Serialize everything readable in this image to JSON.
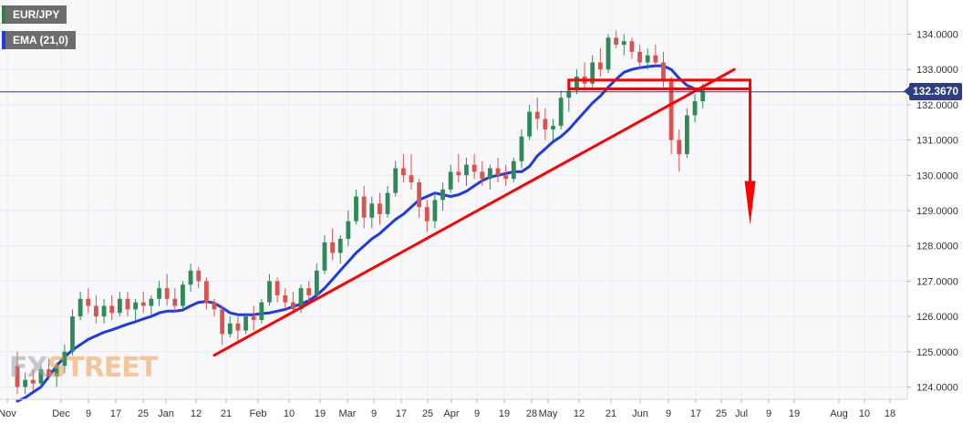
{
  "legend": {
    "symbol": "EUR/JPY",
    "indicator": "EMA (21,0)",
    "symbol_color": "#2e7d4f",
    "indicator_color": "#1f3be0"
  },
  "current_price": "132.3670",
  "watermark": {
    "part1": "FX",
    "part2": "STREET"
  },
  "chart_data": {
    "type": "candlestick",
    "symbol": "EUR/JPY",
    "y_axis": {
      "range": [
        123.75,
        134.4
      ],
      "ticks": [
        "124.0000",
        "125.0000",
        "126.0000",
        "127.0000",
        "128.0000",
        "129.0000",
        "130.0000",
        "131.0000",
        "132.0000",
        "133.0000",
        "134.0000"
      ]
    },
    "x_axis": {
      "ticks": [
        "Nov",
        "Dec",
        "9",
        "17",
        "25",
        "Jan",
        "12",
        "21",
        "Feb",
        "10",
        "19",
        "Mar",
        "9",
        "17",
        "25",
        "Apr",
        "9",
        "19",
        "28",
        "May",
        "12",
        "21",
        "Jun",
        "9",
        "17",
        "25",
        "Jul",
        "9",
        "19",
        "Aug",
        "10",
        "18"
      ]
    },
    "colors": {
      "up": "#2e8b57",
      "down": "#d9534f",
      "ema": "#1f3be0",
      "annotation": "#ff0000",
      "price_line": "#2d3f80"
    },
    "current_price_line": 132.367,
    "ema_21": [
      123.6,
      123.7,
      123.85,
      124.0,
      124.3,
      124.6,
      124.85,
      125.05,
      125.2,
      125.35,
      125.45,
      125.55,
      125.62,
      125.7,
      125.78,
      125.85,
      125.93,
      126.0,
      126.1,
      126.15,
      126.15,
      126.18,
      126.3,
      126.4,
      126.42,
      126.38,
      126.25,
      126.1,
      126.05,
      126.05,
      126.05,
      126.08,
      126.1,
      126.15,
      126.2,
      126.28,
      126.35,
      126.45,
      126.6,
      126.8,
      127.05,
      127.3,
      127.55,
      127.8,
      128.0,
      128.2,
      128.35,
      128.55,
      128.75,
      128.9,
      129.1,
      129.3,
      129.4,
      129.5,
      129.45,
      129.4,
      129.45,
      129.55,
      129.7,
      129.85,
      129.95,
      130.0,
      130.05,
      130.1,
      130.1,
      130.25,
      130.55,
      130.75,
      130.95,
      131.1,
      131.3,
      131.55,
      131.8,
      132.05,
      132.25,
      132.5,
      132.72,
      132.92,
      133.0,
      133.05,
      133.08,
      133.1,
      133.1,
      133.0,
      132.75,
      132.55,
      132.45,
      132.4
    ],
    "candles": [
      {
        "o": 124.6,
        "h": 125.0,
        "l": 123.8,
        "c": 124.0
      },
      {
        "o": 124.0,
        "h": 124.4,
        "l": 123.8,
        "c": 124.2
      },
      {
        "o": 124.2,
        "h": 124.5,
        "l": 123.9,
        "c": 124.1
      },
      {
        "o": 124.1,
        "h": 124.6,
        "l": 124.0,
        "c": 124.5
      },
      {
        "o": 124.5,
        "h": 124.8,
        "l": 124.2,
        "c": 124.3
      },
      {
        "o": 124.3,
        "h": 124.7,
        "l": 124.0,
        "c": 124.6
      },
      {
        "o": 124.6,
        "h": 125.2,
        "l": 124.4,
        "c": 125.0
      },
      {
        "o": 125.0,
        "h": 126.2,
        "l": 124.9,
        "c": 126.0
      },
      {
        "o": 126.0,
        "h": 126.7,
        "l": 125.9,
        "c": 126.5
      },
      {
        "o": 126.5,
        "h": 126.8,
        "l": 126.1,
        "c": 126.3
      },
      {
        "o": 126.3,
        "h": 126.6,
        "l": 125.8,
        "c": 126.0
      },
      {
        "o": 126.0,
        "h": 126.5,
        "l": 125.8,
        "c": 126.3
      },
      {
        "o": 126.3,
        "h": 126.6,
        "l": 125.9,
        "c": 126.1
      },
      {
        "o": 126.1,
        "h": 126.7,
        "l": 126.0,
        "c": 126.5
      },
      {
        "o": 126.5,
        "h": 126.7,
        "l": 126.0,
        "c": 126.2
      },
      {
        "o": 126.2,
        "h": 126.5,
        "l": 125.9,
        "c": 126.4
      },
      {
        "o": 126.4,
        "h": 126.7,
        "l": 126.1,
        "c": 126.3
      },
      {
        "o": 126.3,
        "h": 126.6,
        "l": 126.0,
        "c": 126.5
      },
      {
        "o": 126.5,
        "h": 127.0,
        "l": 126.3,
        "c": 126.8
      },
      {
        "o": 126.8,
        "h": 127.2,
        "l": 126.3,
        "c": 126.5
      },
      {
        "o": 126.5,
        "h": 126.8,
        "l": 126.1,
        "c": 126.3
      },
      {
        "o": 126.3,
        "h": 127.0,
        "l": 126.2,
        "c": 126.9
      },
      {
        "o": 126.9,
        "h": 127.5,
        "l": 126.7,
        "c": 127.3
      },
      {
        "o": 127.3,
        "h": 127.4,
        "l": 126.8,
        "c": 127.0
      },
      {
        "o": 127.0,
        "h": 127.1,
        "l": 126.2,
        "c": 126.4
      },
      {
        "o": 126.4,
        "h": 126.5,
        "l": 126.0,
        "c": 126.2
      },
      {
        "o": 126.2,
        "h": 126.3,
        "l": 125.2,
        "c": 125.5
      },
      {
        "o": 125.5,
        "h": 126.0,
        "l": 125.4,
        "c": 125.8
      },
      {
        "o": 125.8,
        "h": 126.0,
        "l": 125.3,
        "c": 125.6
      },
      {
        "o": 125.6,
        "h": 126.1,
        "l": 125.5,
        "c": 126.0
      },
      {
        "o": 126.0,
        "h": 126.3,
        "l": 125.6,
        "c": 125.9
      },
      {
        "o": 125.9,
        "h": 126.5,
        "l": 125.8,
        "c": 126.4
      },
      {
        "o": 126.4,
        "h": 127.2,
        "l": 126.3,
        "c": 127.0
      },
      {
        "o": 127.0,
        "h": 127.1,
        "l": 126.4,
        "c": 126.6
      },
      {
        "o": 126.6,
        "h": 126.8,
        "l": 126.2,
        "c": 126.4
      },
      {
        "o": 126.4,
        "h": 126.7,
        "l": 126.1,
        "c": 126.2
      },
      {
        "o": 126.2,
        "h": 126.9,
        "l": 126.1,
        "c": 126.8
      },
      {
        "o": 126.8,
        "h": 127.0,
        "l": 126.4,
        "c": 126.6
      },
      {
        "o": 126.6,
        "h": 127.5,
        "l": 126.5,
        "c": 127.3
      },
      {
        "o": 127.3,
        "h": 128.3,
        "l": 127.2,
        "c": 128.1
      },
      {
        "o": 128.1,
        "h": 128.5,
        "l": 127.6,
        "c": 127.8
      },
      {
        "o": 127.8,
        "h": 128.3,
        "l": 127.5,
        "c": 128.2
      },
      {
        "o": 128.2,
        "h": 129.0,
        "l": 128.0,
        "c": 128.7
      },
      {
        "o": 128.7,
        "h": 129.6,
        "l": 128.6,
        "c": 129.4
      },
      {
        "o": 129.4,
        "h": 129.7,
        "l": 128.5,
        "c": 128.8
      },
      {
        "o": 128.8,
        "h": 129.4,
        "l": 128.5,
        "c": 129.2
      },
      {
        "o": 129.2,
        "h": 129.5,
        "l": 128.6,
        "c": 128.9
      },
      {
        "o": 128.9,
        "h": 129.7,
        "l": 128.8,
        "c": 129.5
      },
      {
        "o": 129.5,
        "h": 130.4,
        "l": 129.4,
        "c": 130.2
      },
      {
        "o": 130.2,
        "h": 130.6,
        "l": 129.8,
        "c": 130.0
      },
      {
        "o": 130.0,
        "h": 130.6,
        "l": 129.6,
        "c": 129.8
      },
      {
        "o": 129.8,
        "h": 129.9,
        "l": 128.8,
        "c": 129.1
      },
      {
        "o": 129.1,
        "h": 129.3,
        "l": 128.4,
        "c": 128.7
      },
      {
        "o": 128.7,
        "h": 129.5,
        "l": 128.5,
        "c": 129.3
      },
      {
        "o": 129.3,
        "h": 129.8,
        "l": 129.0,
        "c": 129.6
      },
      {
        "o": 129.6,
        "h": 130.3,
        "l": 129.5,
        "c": 130.1
      },
      {
        "o": 130.1,
        "h": 130.6,
        "l": 129.8,
        "c": 130.0
      },
      {
        "o": 130.0,
        "h": 130.5,
        "l": 129.7,
        "c": 130.3
      },
      {
        "o": 130.3,
        "h": 130.6,
        "l": 129.9,
        "c": 130.1
      },
      {
        "o": 130.1,
        "h": 130.4,
        "l": 129.7,
        "c": 129.9
      },
      {
        "o": 129.9,
        "h": 130.3,
        "l": 129.6,
        "c": 130.2
      },
      {
        "o": 130.2,
        "h": 130.5,
        "l": 129.8,
        "c": 130.0
      },
      {
        "o": 130.0,
        "h": 130.3,
        "l": 129.7,
        "c": 129.9
      },
      {
        "o": 129.9,
        "h": 130.5,
        "l": 129.8,
        "c": 130.4
      },
      {
        "o": 130.4,
        "h": 131.3,
        "l": 130.2,
        "c": 131.1
      },
      {
        "o": 131.1,
        "h": 132.0,
        "l": 131.0,
        "c": 131.8
      },
      {
        "o": 131.8,
        "h": 132.2,
        "l": 131.3,
        "c": 131.6
      },
      {
        "o": 131.6,
        "h": 131.9,
        "l": 131.0,
        "c": 131.3
      },
      {
        "o": 131.3,
        "h": 131.6,
        "l": 131.0,
        "c": 131.4
      },
      {
        "o": 131.4,
        "h": 132.4,
        "l": 131.3,
        "c": 132.2
      },
      {
        "o": 132.2,
        "h": 132.6,
        "l": 131.8,
        "c": 132.4
      },
      {
        "o": 132.4,
        "h": 133.0,
        "l": 132.3,
        "c": 132.8
      },
      {
        "o": 132.8,
        "h": 133.2,
        "l": 132.4,
        "c": 132.6
      },
      {
        "o": 132.6,
        "h": 133.4,
        "l": 132.5,
        "c": 133.2
      },
      {
        "o": 133.2,
        "h": 133.6,
        "l": 132.8,
        "c": 133.0
      },
      {
        "o": 133.0,
        "h": 134.0,
        "l": 132.9,
        "c": 133.9
      },
      {
        "o": 133.9,
        "h": 134.1,
        "l": 133.6,
        "c": 133.7
      },
      {
        "o": 133.7,
        "h": 134.0,
        "l": 133.4,
        "c": 133.8
      },
      {
        "o": 133.8,
        "h": 133.9,
        "l": 133.3,
        "c": 133.5
      },
      {
        "o": 133.5,
        "h": 133.7,
        "l": 133.0,
        "c": 133.2
      },
      {
        "o": 133.2,
        "h": 133.6,
        "l": 133.0,
        "c": 133.4
      },
      {
        "o": 133.4,
        "h": 133.7,
        "l": 133.1,
        "c": 133.2
      },
      {
        "o": 133.2,
        "h": 133.5,
        "l": 132.5,
        "c": 132.7
      },
      {
        "o": 132.7,
        "h": 132.8,
        "l": 130.6,
        "c": 131.0
      },
      {
        "o": 131.0,
        "h": 131.3,
        "l": 130.1,
        "c": 130.6
      },
      {
        "o": 130.6,
        "h": 131.9,
        "l": 130.5,
        "c": 131.7
      },
      {
        "o": 131.7,
        "h": 132.3,
        "l": 131.5,
        "c": 132.1
      },
      {
        "o": 132.1,
        "h": 132.6,
        "l": 131.9,
        "c": 132.4
      }
    ],
    "annotations": [
      {
        "type": "trendline",
        "from": {
          "index": 25,
          "price": 124.9
        },
        "to": {
          "index": 91,
          "price": 133.0
        }
      },
      {
        "type": "rectangle",
        "index_range": [
          70,
          93
        ],
        "price_range": [
          132.45,
          132.7
        ]
      },
      {
        "type": "arrow",
        "direction": "down",
        "index": 93,
        "from_price": 132.55,
        "to_price": 128.6
      }
    ]
  }
}
